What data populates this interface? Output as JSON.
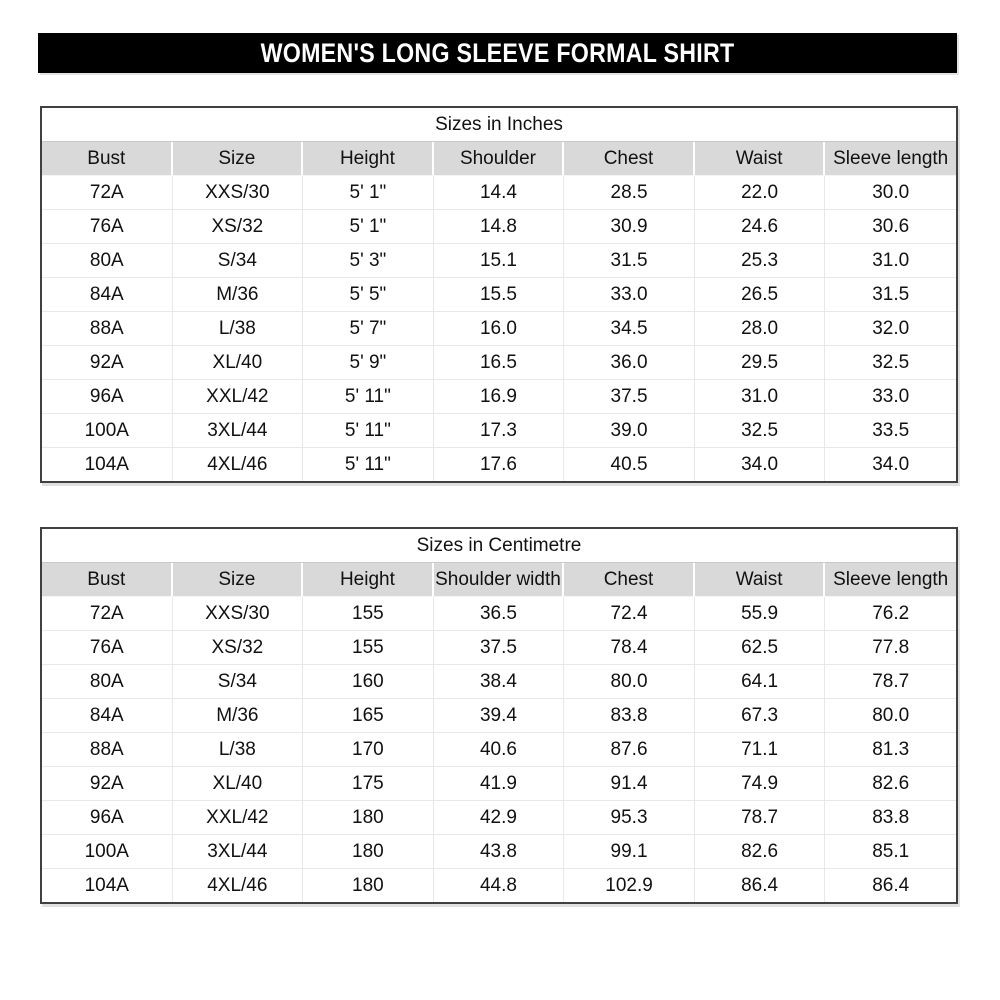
{
  "banner": {
    "title": "WOMEN'S LONG SLEEVE FORMAL SHIRT"
  },
  "chart_data": [
    {
      "type": "table",
      "title": "Sizes in Inches",
      "columns": [
        "Bust",
        "Size",
        "Height",
        "Shoulder",
        "Chest",
        "Waist",
        "Sleeve length"
      ],
      "rows": [
        [
          "72A",
          "XXS/30",
          "5' 1\"",
          "14.4",
          "28.5",
          "22.0",
          "30.0"
        ],
        [
          "76A",
          "XS/32",
          "5' 1\"",
          "14.8",
          "30.9",
          "24.6",
          "30.6"
        ],
        [
          "80A",
          "S/34",
          "5' 3\"",
          "15.1",
          "31.5",
          "25.3",
          "31.0"
        ],
        [
          "84A",
          "M/36",
          "5' 5\"",
          "15.5",
          "33.0",
          "26.5",
          "31.5"
        ],
        [
          "88A",
          "L/38",
          "5' 7\"",
          "16.0",
          "34.5",
          "28.0",
          "32.0"
        ],
        [
          "92A",
          "XL/40",
          "5' 9\"",
          "16.5",
          "36.0",
          "29.5",
          "32.5"
        ],
        [
          "96A",
          "XXL/42",
          "5' 11\"",
          "16.9",
          "37.5",
          "31.0",
          "33.0"
        ],
        [
          "100A",
          "3XL/44",
          "5' 11\"",
          "17.3",
          "39.0",
          "32.5",
          "33.5"
        ],
        [
          "104A",
          "4XL/46",
          "5' 11\"",
          "17.6",
          "40.5",
          "34.0",
          "34.0"
        ]
      ]
    },
    {
      "type": "table",
      "title": "Sizes in Centimetre",
      "columns": [
        "Bust",
        "Size",
        "Height",
        "Shoulder width",
        "Chest",
        "Waist",
        "Sleeve length"
      ],
      "rows": [
        [
          "72A",
          "XXS/30",
          "155",
          "36.5",
          "72.4",
          "55.9",
          "76.2"
        ],
        [
          "76A",
          "XS/32",
          "155",
          "37.5",
          "78.4",
          "62.5",
          "77.8"
        ],
        [
          "80A",
          "S/34",
          "160",
          "38.4",
          "80.0",
          "64.1",
          "78.7"
        ],
        [
          "84A",
          "M/36",
          "165",
          "39.4",
          "83.8",
          "67.3",
          "80.0"
        ],
        [
          "88A",
          "L/38",
          "170",
          "40.6",
          "87.6",
          "71.1",
          "81.3"
        ],
        [
          "92A",
          "XL/40",
          "175",
          "41.9",
          "91.4",
          "74.9",
          "82.6"
        ],
        [
          "96A",
          "XXL/42",
          "180",
          "42.9",
          "95.3",
          "78.7",
          "83.8"
        ],
        [
          "100A",
          "3XL/44",
          "180",
          "43.8",
          "99.1",
          "82.6",
          "85.1"
        ],
        [
          "104A",
          "4XL/46",
          "180",
          "44.8",
          "102.9",
          "86.4",
          "86.4"
        ]
      ]
    }
  ],
  "colors": {
    "banner_bg": "#000000",
    "banner_text": "#ffffff",
    "header_row_bg": "#d9d9d9",
    "grid_line": "#e8e8e8",
    "outer_border": "#404040",
    "body_text": "#111111"
  }
}
